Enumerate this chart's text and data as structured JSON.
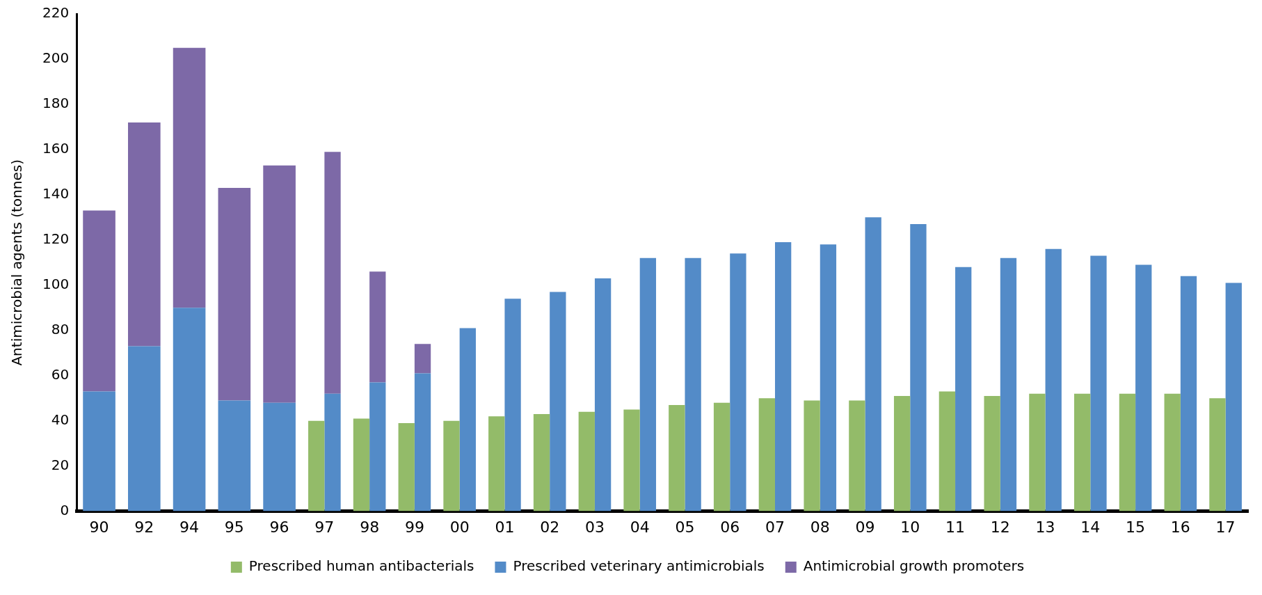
{
  "chart_data": {
    "type": "bar",
    "ylabel": "Antimicrobial agents (tonnes)",
    "categories": [
      "90",
      "92",
      "94",
      "95",
      "96",
      "97",
      "98",
      "99",
      "00",
      "01",
      "02",
      "03",
      "04",
      "05",
      "06",
      "07",
      "08",
      "09",
      "10",
      "11",
      "12",
      "13",
      "14",
      "15",
      "16",
      "17"
    ],
    "series": [
      {
        "name": "Prescribed human antibacterials",
        "color": "#93bb69",
        "values": [
          null,
          null,
          null,
          null,
          null,
          40,
          41,
          39,
          40,
          42,
          43,
          44,
          45,
          47,
          48,
          50,
          49,
          49,
          51,
          53,
          51,
          52,
          52,
          52,
          52,
          50
        ]
      },
      {
        "name": "Prescribed veterinary antimicrobials",
        "color": "#538bc8",
        "values": [
          53,
          73,
          90,
          49,
          48,
          52,
          57,
          61,
          81,
          94,
          97,
          103,
          112,
          112,
          114,
          119,
          118,
          130,
          127,
          108,
          112,
          116,
          113,
          109,
          104,
          101
        ]
      },
      {
        "name": "Antimicrobial growth promoters",
        "color": "#7d69a7",
        "base": [
          53,
          73,
          90,
          49,
          48,
          52,
          57,
          61,
          null,
          null,
          null,
          null,
          null,
          null,
          null,
          null,
          null,
          null,
          null,
          null,
          null,
          null,
          null,
          null,
          null,
          null
        ],
        "values": [
          80,
          99,
          115,
          94,
          105,
          107,
          49,
          13,
          null,
          null,
          null,
          null,
          null,
          null,
          null,
          null,
          null,
          null,
          null,
          null,
          null,
          null,
          null,
          null,
          null,
          null
        ]
      }
    ],
    "ylim": [
      0,
      220
    ],
    "yticks": [
      0,
      20,
      40,
      60,
      80,
      100,
      120,
      140,
      160,
      180,
      200,
      220
    ],
    "grid": false,
    "legend": "bottom"
  }
}
